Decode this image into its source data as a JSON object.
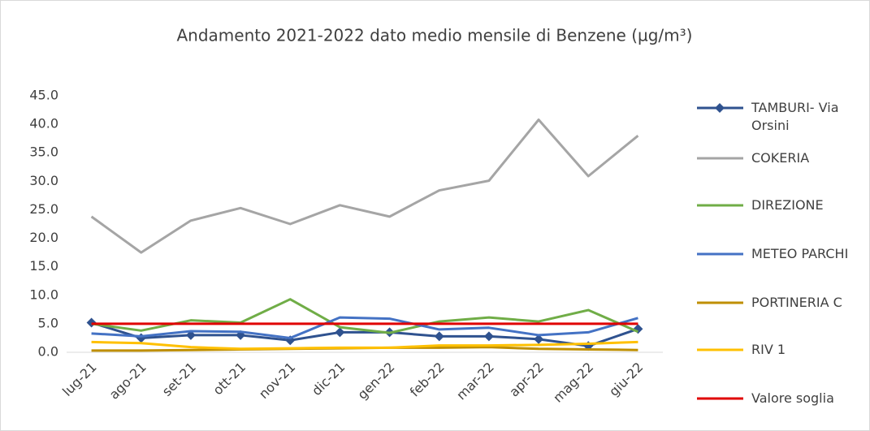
{
  "chart_data": {
    "type": "line",
    "title": "Andamento 2021-2022 dato medio mensile di Benzene (µg/m³)",
    "categories": [
      "lug-21",
      "ago-21",
      "set-21",
      "ott-21",
      "nov-21",
      "dic-21",
      "gen-22",
      "feb-22",
      "mar-22",
      "apr-22",
      "mag-22",
      "giu-22"
    ],
    "series": [
      {
        "name": "TAMBURI- Via Orsini",
        "color": "#2f528f",
        "marker": "diamond",
        "values": [
          5.2,
          2.5,
          3.0,
          3.0,
          2.1,
          3.5,
          3.5,
          2.8,
          2.8,
          2.3,
          1.1,
          4.1
        ]
      },
      {
        "name": "COKERIA",
        "color": "#a5a5a5",
        "values": [
          23.8,
          17.5,
          23.1,
          25.3,
          22.5,
          25.8,
          23.8,
          28.4,
          30.1,
          40.8,
          30.9,
          38.0
        ]
      },
      {
        "name": "DIREZIONE",
        "color": "#70ad47",
        "values": [
          5.0,
          3.8,
          5.6,
          5.2,
          9.3,
          4.4,
          3.4,
          5.4,
          6.1,
          5.4,
          7.4,
          3.6
        ]
      },
      {
        "name": "METEO PARCHI",
        "color": "#4472c4",
        "values": [
          3.3,
          2.8,
          3.7,
          3.6,
          2.5,
          6.1,
          5.9,
          4.0,
          4.3,
          3.0,
          3.5,
          6.0
        ]
      },
      {
        "name": "PORTINERIA C",
        "color": "#bf8f00",
        "values": [
          0.3,
          0.3,
          0.4,
          0.5,
          0.6,
          0.7,
          0.8,
          0.8,
          0.9,
          0.6,
          0.5,
          0.4
        ]
      },
      {
        "name": "RIV 1",
        "color": "#ffc000",
        "values": [
          1.8,
          1.6,
          0.9,
          0.6,
          0.7,
          0.8,
          0.8,
          1.2,
          1.2,
          1.3,
          1.5,
          1.8
        ]
      },
      {
        "name": "Valore soglia",
        "color": "#e00000",
        "values": [
          5,
          5,
          5,
          5,
          5,
          5,
          5,
          5,
          5,
          5,
          5,
          5
        ]
      }
    ],
    "ylim": [
      0,
      45
    ],
    "yticks": [
      {
        "value": 0,
        "label": "0.0"
      },
      {
        "value": 5,
        "label": "5.0"
      },
      {
        "value": 10,
        "label": "10.0"
      },
      {
        "value": 15,
        "label": "15.0"
      },
      {
        "value": 20,
        "label": "20.0"
      },
      {
        "value": 25,
        "label": "25.0"
      },
      {
        "value": 30,
        "label": "30.0"
      },
      {
        "value": 35,
        "label": "35.0"
      },
      {
        "value": 40,
        "label": "40.0"
      },
      {
        "value": 45,
        "label": "45.0"
      }
    ],
    "legend": "right"
  }
}
